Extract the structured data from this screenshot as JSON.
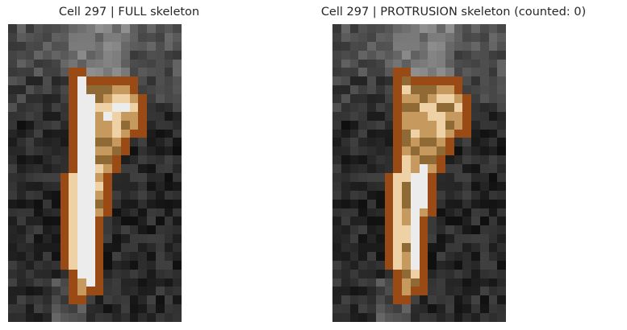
{
  "panels": [
    {
      "title": "Cell 297 | FULL skeleton",
      "skeleton": "full"
    },
    {
      "title": "Cell 297 | PROTRUSION skeleton (counted: 0)",
      "skeleton": "protrusion"
    }
  ],
  "colors": {
    "background": "#ffffff",
    "outline": "#9a4a14",
    "cell_light": "#eed2a6",
    "cell_mid": "#c69a5e",
    "cell_dark": "#8f6a34",
    "skeleton": "#ececec"
  }
}
